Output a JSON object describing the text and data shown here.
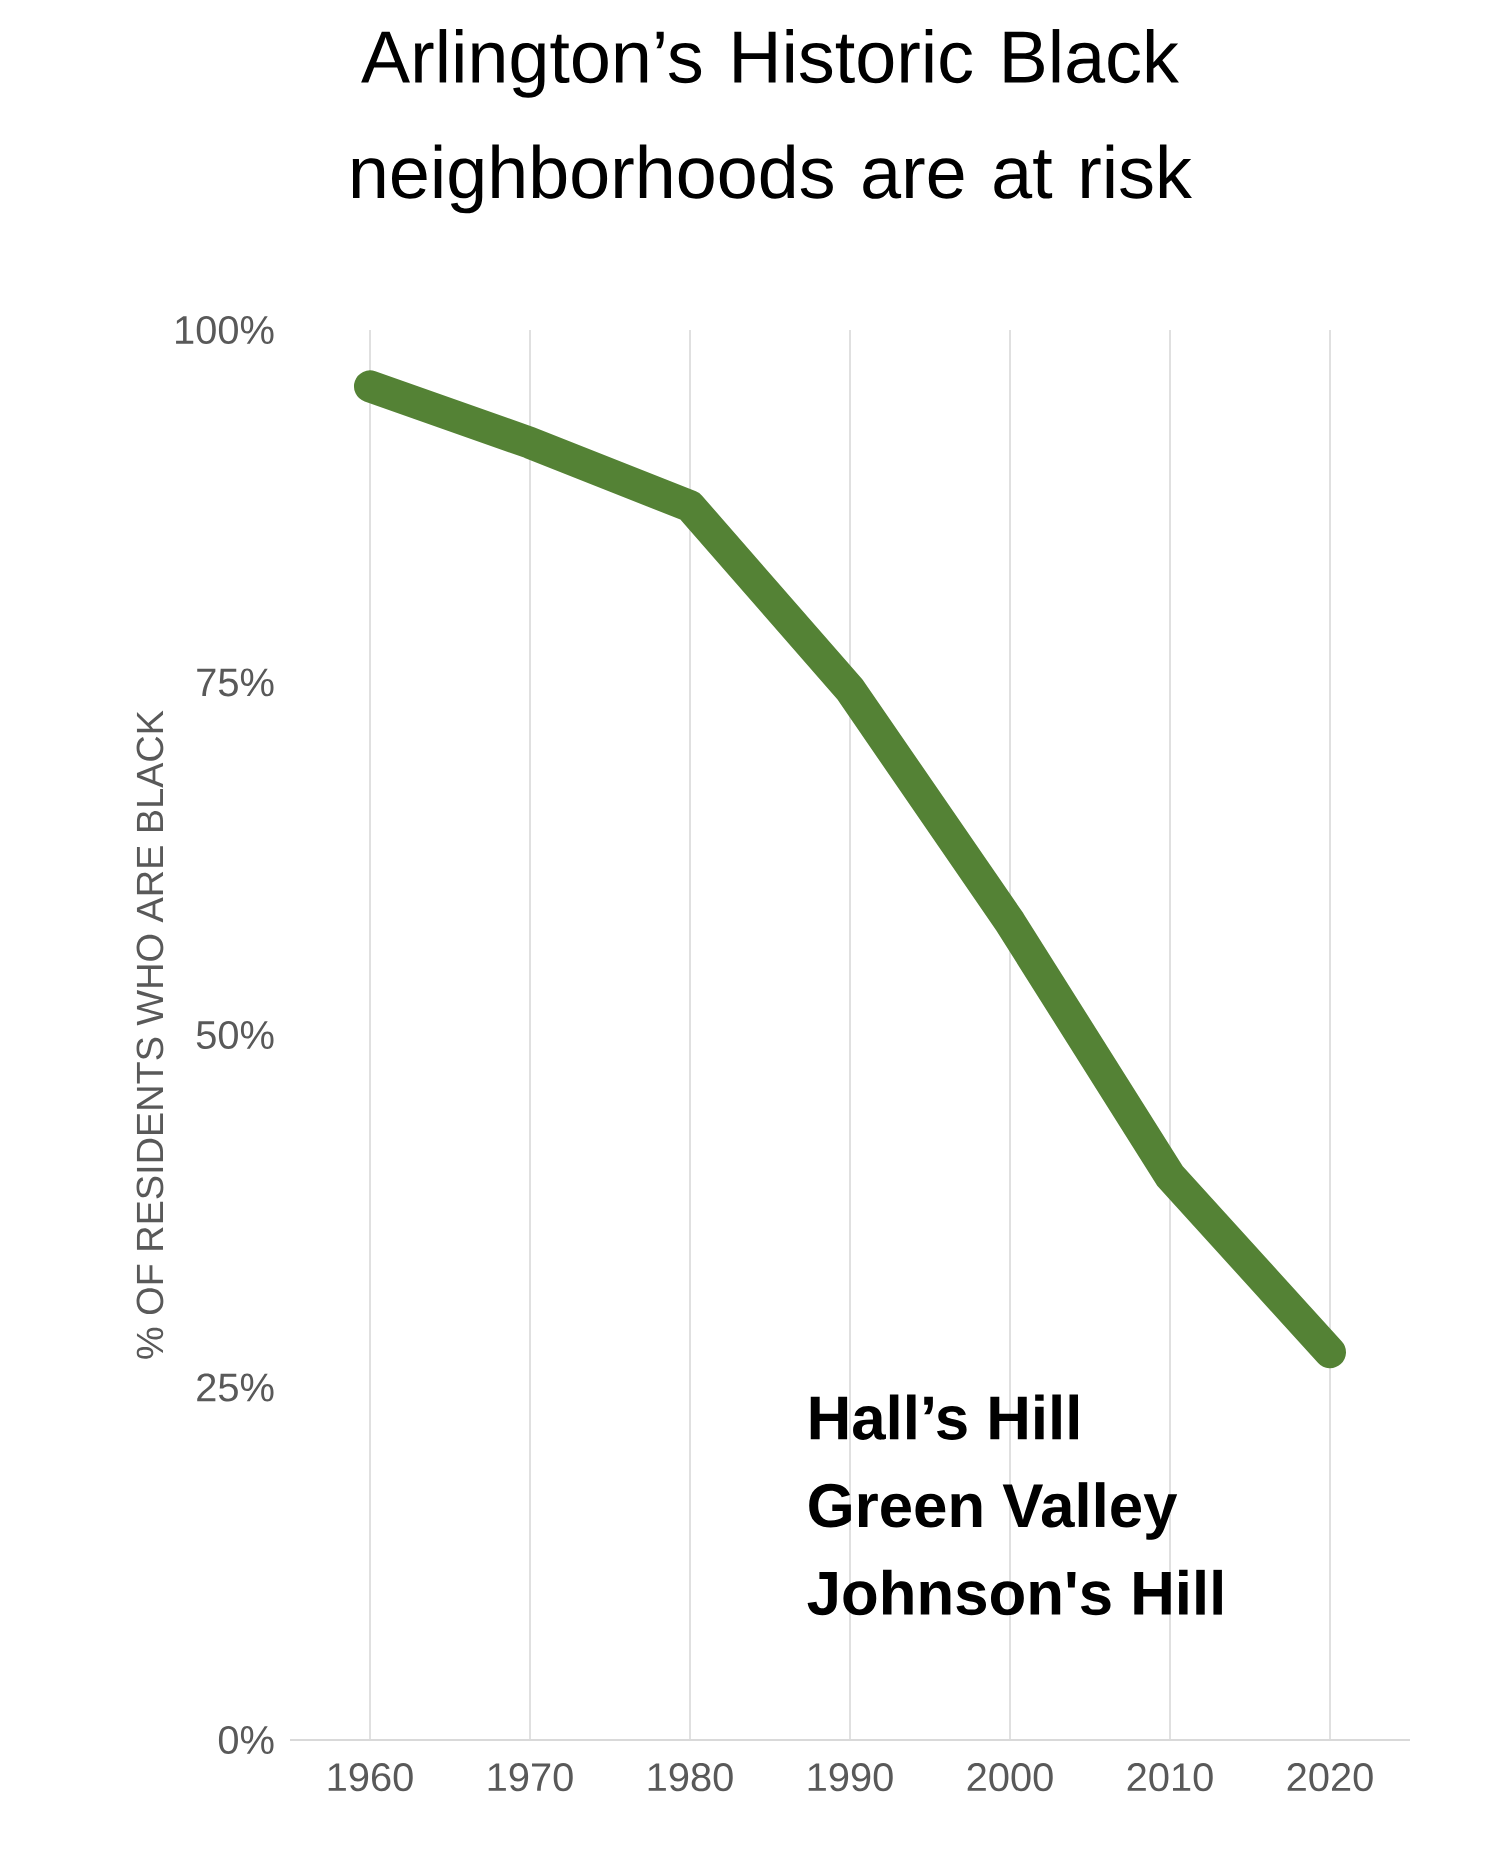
{
  "chart_data": {
    "type": "line",
    "title": "Arlington’s Historic Black neighborhoods are at risk",
    "ylabel": "% OF RESIDENTS WHO ARE BLACK",
    "categories": [
      "1960",
      "1970",
      "1980",
      "1990",
      "2000",
      "2010",
      "2020"
    ],
    "values": [
      96,
      92,
      87.5,
      74.5,
      58,
      40,
      27.5
    ],
    "color": "#548235",
    "ylim": [
      0,
      100
    ],
    "yticks": [
      {
        "value": 0,
        "label": "0%"
      },
      {
        "value": 25,
        "label": "25%"
      },
      {
        "value": 50,
        "label": "50%"
      },
      {
        "value": 75,
        "label": "75%"
      },
      {
        "value": 100,
        "label": "100%"
      }
    ],
    "grid": "x",
    "annotations": [
      "Hall’s Hill",
      "Green Valley",
      "Johnson's Hill"
    ]
  }
}
